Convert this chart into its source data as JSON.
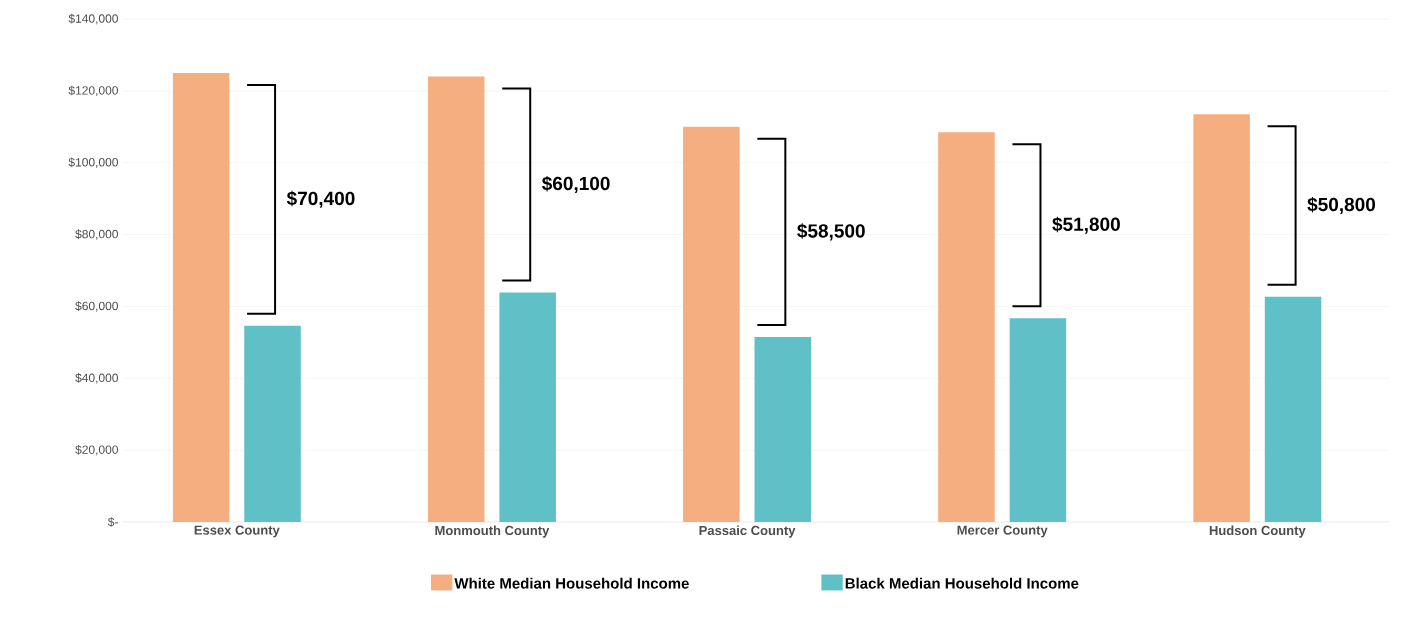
{
  "chart_data": {
    "type": "bar",
    "categories": [
      "Essex County",
      "Monmouth County",
      "Passaic County",
      "Mercer County",
      "Hudson County"
    ],
    "series": [
      {
        "name": "White Median Household Income",
        "color": "#f4ae80",
        "values": [
          125000,
          124000,
          110000,
          108500,
          113500
        ]
      },
      {
        "name": "Black Median Household Income",
        "color": "#5fc0c7",
        "values": [
          54600,
          63900,
          51500,
          56700,
          62700
        ]
      }
    ],
    "ylim": [
      0,
      140000
    ],
    "yticks": [
      {
        "value": 0,
        "label": "$-"
      },
      {
        "value": 20000,
        "label": "$20,000"
      },
      {
        "value": 40000,
        "label": "$40,000"
      },
      {
        "value": 60000,
        "label": "$60,000"
      },
      {
        "value": 80000,
        "label": "$80,000"
      },
      {
        "value": 100000,
        "label": "$100,000"
      },
      {
        "value": 120000,
        "label": "$120,000"
      },
      {
        "value": 140000,
        "label": "$140,000"
      }
    ],
    "grid": "y",
    "legend": "bottom",
    "annotations": [
      "$70,400",
      "$60,100",
      "$58,500",
      "$51,800",
      "$50,800"
    ]
  }
}
